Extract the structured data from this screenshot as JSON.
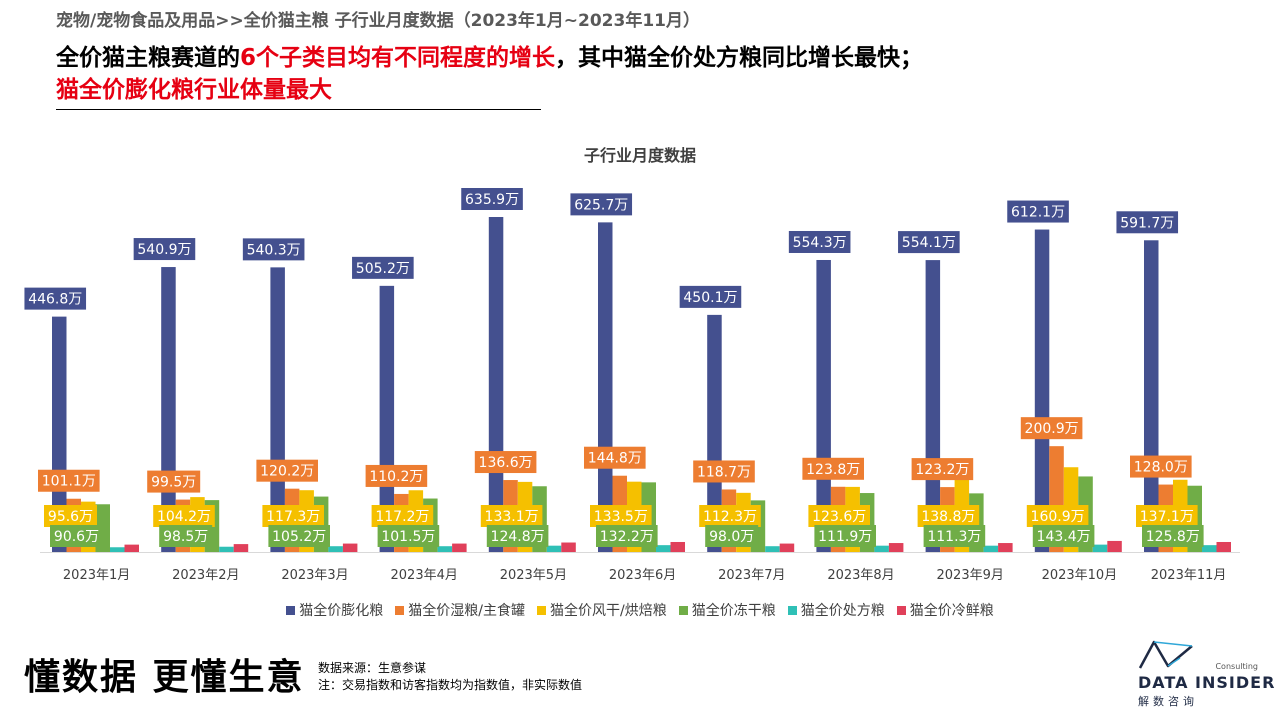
{
  "header": {
    "breadcrumb": "宠物/宠物食品及用品>>全价猫主粮  子行业月度数据（2023年1月~2023年11月）",
    "headline_part1": "全价猫主粮赛道的",
    "headline_part2_red": "6个子类目均有不同程度的增长",
    "headline_part3": "，其中猫全价处方粮同比增长最快；",
    "headline_line2_red": "猫全价膨化粮行业体量最大"
  },
  "colors": {
    "headline_red": "#e60012",
    "label_text": "#ffffff"
  },
  "chart_data": {
    "type": "bar",
    "title": "子行业月度数据",
    "categories": [
      "2023年1月",
      "2023年2月",
      "2023年3月",
      "2023年4月",
      "2023年5月",
      "2023年6月",
      "2023年7月",
      "2023年8月",
      "2023年9月",
      "2023年10月",
      "2023年11月"
    ],
    "series": [
      {
        "name": "猫全价膨化粮",
        "color": "#44508f",
        "values": [
          446.8,
          540.9,
          540.3,
          505.2,
          635.9,
          625.7,
          450.1,
          554.3,
          554.1,
          612.1,
          591.7
        ],
        "labels": [
          "446.8万",
          "540.9万",
          "540.3万",
          "505.2万",
          "635.9万",
          "625.7万",
          "450.1万",
          "554.3万",
          "554.1万",
          "612.1万",
          "591.7万"
        ]
      },
      {
        "name": "猫全价湿粮/主食罐",
        "color": "#ed7d31",
        "values": [
          101.1,
          99.5,
          120.2,
          110.2,
          136.6,
          144.8,
          118.7,
          123.8,
          123.2,
          200.9,
          128.0
        ],
        "labels": [
          "101.1万",
          "99.5万",
          "120.2万",
          "110.2万",
          "136.6万",
          "144.8万",
          "118.7万",
          "123.8万",
          "123.2万",
          "200.9万",
          "128.0万"
        ]
      },
      {
        "name": "猫全价风干/烘焙粮",
        "color": "#f5c000",
        "values": [
          95.6,
          104.2,
          117.3,
          117.2,
          133.1,
          133.5,
          112.3,
          123.6,
          138.8,
          160.9,
          137.1
        ],
        "labels": [
          "95.6万",
          "104.2万",
          "117.3万",
          "117.2万",
          "133.1万",
          "133.5万",
          "112.3万",
          "123.6万",
          "138.8万",
          "160.9万",
          "137.1万"
        ]
      },
      {
        "name": "猫全价冻干粮",
        "color": "#70ad47",
        "values": [
          90.6,
          98.5,
          105.2,
          101.5,
          124.8,
          132.2,
          98.0,
          111.9,
          111.3,
          143.4,
          125.8
        ],
        "labels": [
          "90.6万",
          "98.5万",
          "105.2万",
          "101.5万",
          "124.8万",
          "132.2万",
          "98.0万",
          "111.9万",
          "111.3万",
          "143.4万",
          "125.8万"
        ]
      },
      {
        "name": "猫全价处方粮",
        "color": "#2fc0b6",
        "values": [
          9,
          10,
          11,
          11,
          12,
          13,
          11,
          12,
          12,
          14,
          13
        ],
        "labels": []
      },
      {
        "name": "猫全价冷鲜粮",
        "color": "#e0405a",
        "values": [
          14,
          15,
          16,
          16,
          18,
          19,
          16,
          17,
          17,
          21,
          19
        ],
        "labels": []
      }
    ],
    "legend_position": "bottom",
    "grid": false
  },
  "footer": {
    "slogan": "懂数据 更懂生意",
    "source": "数据来源：生意参谋",
    "note": "注：交易指数和访客指数均为指数值，非实际数值",
    "logo_consulting": "Consulting",
    "logo_name": "DATA INSIDER",
    "logo_sub": "解数咨询"
  }
}
